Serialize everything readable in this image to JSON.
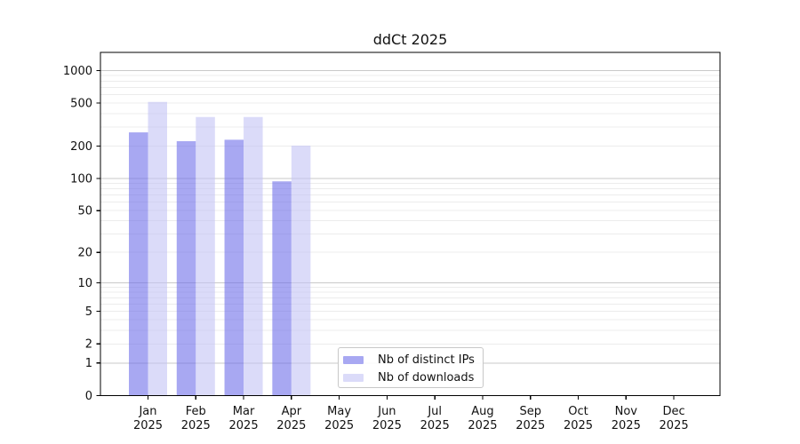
{
  "figure": {
    "background": "#ffffff"
  },
  "chart_data": {
    "type": "bar",
    "title": "ddCt 2025",
    "categories": [
      "Jan",
      "Feb",
      "Mar",
      "Apr",
      "May",
      "Jun",
      "Jul",
      "Aug",
      "Sep",
      "Oct",
      "Nov",
      "Dec"
    ],
    "x_tick_line2": "2025",
    "series": [
      {
        "name": "Nb of distinct IPs",
        "color": "#a8a8f2",
        "base_color": "#6e6eea",
        "opacity": 0.6,
        "values": [
          268,
          222,
          229,
          94,
          null,
          null,
          null,
          null,
          null,
          null,
          null,
          null
        ]
      },
      {
        "name": "Nb of downloads",
        "color": "#dbdbf9",
        "base_color": "#c3c3f5",
        "opacity": 0.6,
        "values": [
          513,
          372,
          372,
          202,
          null,
          null,
          null,
          null,
          null,
          null,
          null,
          null
        ]
      }
    ],
    "y_scale": "log1p",
    "y_ticks": [
      0,
      1,
      2,
      5,
      10,
      20,
      50,
      100,
      200,
      500,
      1000
    ],
    "ylim": [
      0,
      1490
    ],
    "xlabel": "",
    "ylabel": "",
    "grid": "on",
    "legend_position": "lower-center-inside",
    "colors": {
      "major_gridline": "#c9c9c9",
      "minor_gridline": "#ececec",
      "axis_spine": "#000000",
      "text": "#111111"
    }
  }
}
